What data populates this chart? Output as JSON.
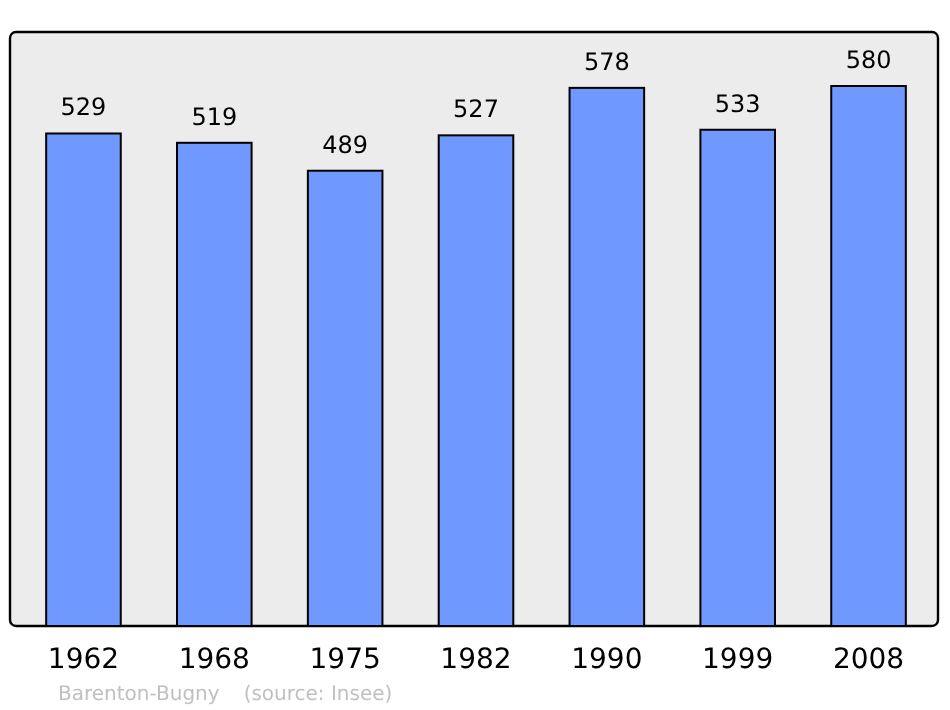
{
  "chart_data": {
    "type": "bar",
    "categories": [
      "1962",
      "1968",
      "1975",
      "1982",
      "1990",
      "1999",
      "2008"
    ],
    "values": [
      529,
      519,
      489,
      527,
      578,
      533,
      580
    ],
    "color": "#7099ff",
    "data_labels": true,
    "annotations": [
      "Barenton-Bugny",
      "(source: Insee)"
    ]
  }
}
